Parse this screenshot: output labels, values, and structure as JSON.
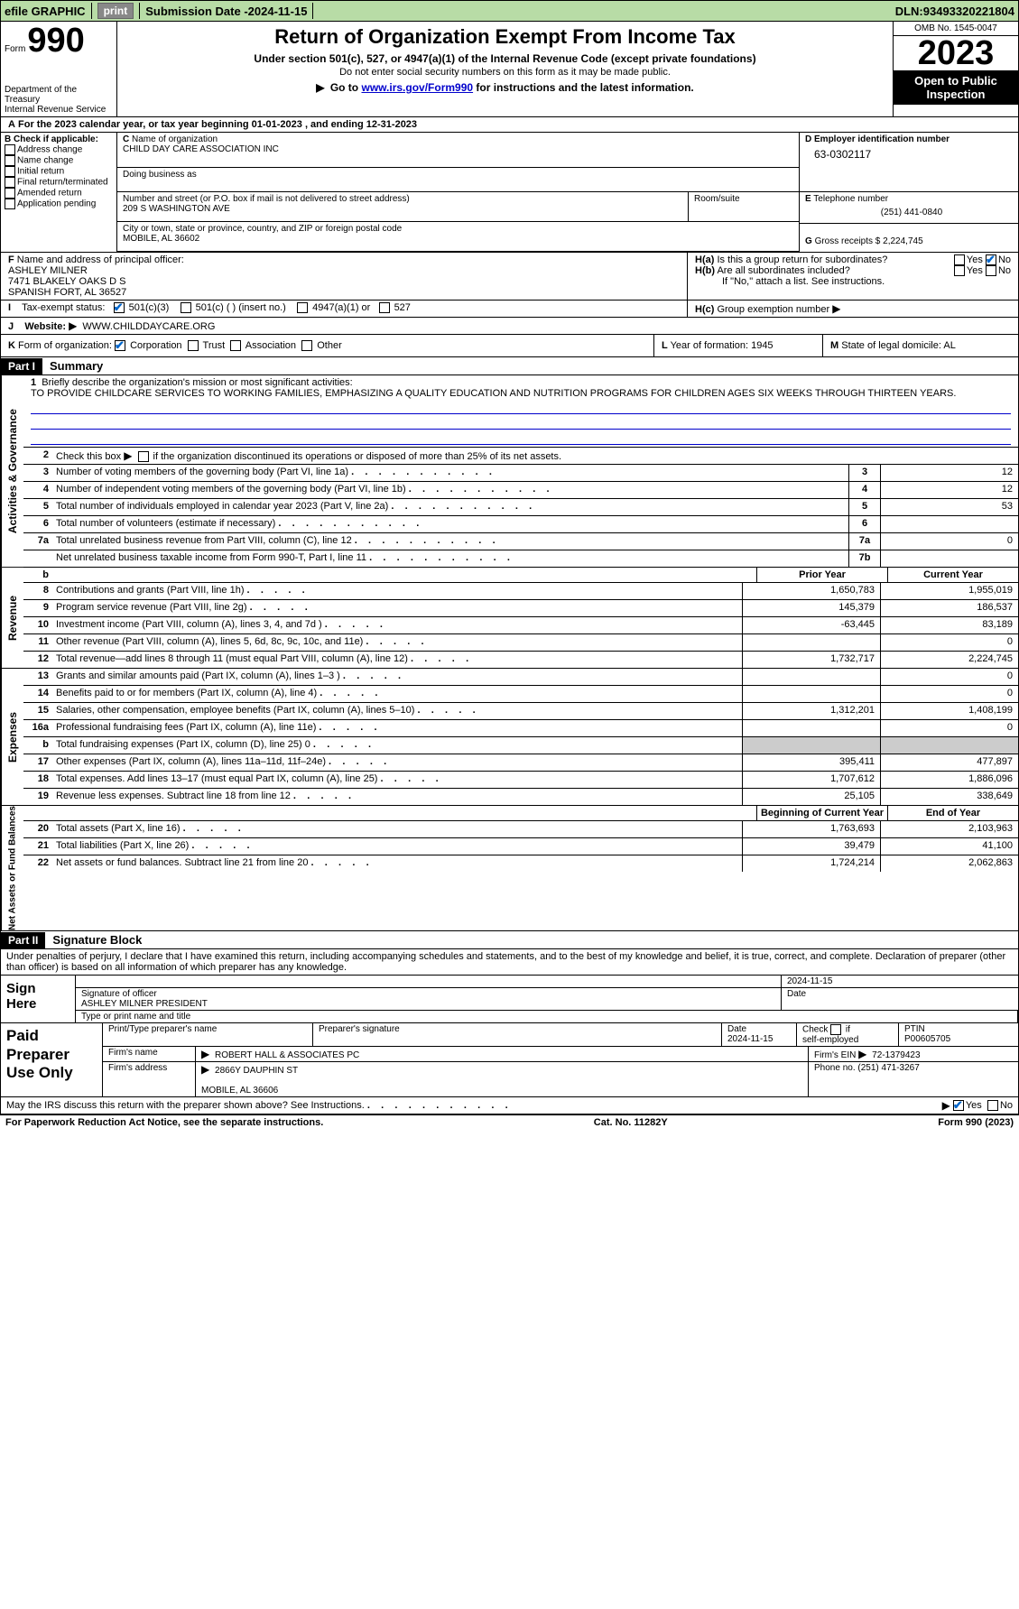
{
  "topbar": {
    "efile": "efile GRAPHIC",
    "print": "print",
    "subdate_lbl": "Submission Date - ",
    "subdate": "2024-11-15",
    "dln_lbl": "DLN: ",
    "dln": "93493320221804"
  },
  "header": {
    "form_word": "Form",
    "form_num": "990",
    "dept": "Department of the Treasury",
    "irs": "Internal Revenue Service",
    "title": "Return of Organization Exempt From Income Tax",
    "sub": "Under section 501(c), 527, or 4947(a)(1) of the Internal Revenue Code (except private foundations)",
    "note": "Do not enter social security numbers on this form as it may be made public.",
    "goto_pre": "Go to ",
    "goto_link": "www.irs.gov/Form990",
    "goto_post": " for instructions and the latest information.",
    "omb": "OMB No. 1545-0047",
    "year": "2023",
    "otp": "Open to Public Inspection"
  },
  "rowA": "For the 2023 calendar year, or tax year beginning 01-01-2023    , and ending 12-31-2023",
  "colB": {
    "hdr": "Check if applicable:",
    "items": [
      "Address change",
      "Name change",
      "Initial return",
      "Final return/terminated",
      "Amended return",
      "Application pending"
    ]
  },
  "colC": {
    "name_lbl": "Name of organization",
    "name": "CHILD DAY CARE ASSOCIATION INC",
    "dba_lbl": "Doing business as",
    "addr_lbl": "Number and street (or P.O. box if mail is not delivered to street address)",
    "addr": "209 S WASHINGTON AVE",
    "room_lbl": "Room/suite",
    "city_lbl": "City or town, state or province, country, and ZIP or foreign postal code",
    "city": "MOBILE, AL  36602"
  },
  "colD": {
    "lbl": "Employer identification number",
    "val": "63-0302117"
  },
  "colE": {
    "lbl": "Telephone number",
    "val": "(251) 441-0840"
  },
  "colG": {
    "lbl": "Gross receipts $",
    "val": "2,224,745"
  },
  "colF": {
    "lbl": "Name and address of principal officer:",
    "name": "ASHLEY MILNER",
    "addr1": "7471 BLAKELY OAKS D S",
    "addr2": "SPANISH FORT, AL  36527"
  },
  "colH": {
    "ha": "Is this a group return for subordinates?",
    "hb": "Are all subordinates included?",
    "hb_note": "If \"No,\" attach a list. See instructions.",
    "hc": "Group exemption number",
    "yes": "Yes",
    "no": "No"
  },
  "rowI": {
    "lbl": "Tax-exempt status:",
    "opt1": "501(c)(3)",
    "opt2": "501(c) (  ) (insert no.)",
    "opt3": "4947(a)(1) or",
    "opt4": "527"
  },
  "rowJ": {
    "lbl": "Website:",
    "val": "WWW.CHILDDAYCARE.ORG"
  },
  "rowK": {
    "lbl": "Form of organization:",
    "opts": [
      "Corporation",
      "Trust",
      "Association",
      "Other"
    ]
  },
  "rowL": {
    "lbl": "Year of formation:",
    "val": "1945"
  },
  "rowM": {
    "lbl": "State of legal domicile:",
    "val": "AL"
  },
  "part1": {
    "label": "Part I",
    "title": "Summary",
    "mission_lbl": "Briefly describe the organization's mission or most significant activities:",
    "mission": "TO PROVIDE CHILDCARE SERVICES TO WORKING FAMILIES, EMPHASIZING A QUALITY EDUCATION AND NUTRITION PROGRAMS FOR CHILDREN AGES SIX WEEKS THROUGH THIRTEEN YEARS.",
    "line2": "Check this box      if the organization discontinued its operations or disposed of more than 25% of its net assets.",
    "gov_label": "Activities & Governance",
    "rev_label": "Revenue",
    "exp_label": "Expenses",
    "net_label": "Net Assets or Fund Balances",
    "prior_lbl": "Prior Year",
    "current_lbl": "Current Year",
    "begin_lbl": "Beginning of Current Year",
    "end_lbl": "End of Year",
    "lines_gov": [
      {
        "n": "3",
        "t": "Number of voting members of the governing body (Part VI, line 1a)",
        "c": "3",
        "v": "12"
      },
      {
        "n": "4",
        "t": "Number of independent voting members of the governing body (Part VI, line 1b)",
        "c": "4",
        "v": "12"
      },
      {
        "n": "5",
        "t": "Total number of individuals employed in calendar year 2023 (Part V, line 2a)",
        "c": "5",
        "v": "53"
      },
      {
        "n": "6",
        "t": "Total number of volunteers (estimate if necessary)",
        "c": "6",
        "v": ""
      },
      {
        "n": "7a",
        "t": "Total unrelated business revenue from Part VIII, column (C), line 12",
        "c": "7a",
        "v": "0"
      },
      {
        "n": "",
        "t": "Net unrelated business taxable income from Form 990-T, Part I, line 11",
        "c": "7b",
        "v": ""
      }
    ],
    "lines_rev": [
      {
        "n": "8",
        "t": "Contributions and grants (Part VIII, line 1h)",
        "p": "1,650,783",
        "c": "1,955,019"
      },
      {
        "n": "9",
        "t": "Program service revenue (Part VIII, line 2g)",
        "p": "145,379",
        "c": "186,537"
      },
      {
        "n": "10",
        "t": "Investment income (Part VIII, column (A), lines 3, 4, and 7d )",
        "p": "-63,445",
        "c": "83,189"
      },
      {
        "n": "11",
        "t": "Other revenue (Part VIII, column (A), lines 5, 6d, 8c, 9c, 10c, and 11e)",
        "p": "",
        "c": "0"
      },
      {
        "n": "12",
        "t": "Total revenue—add lines 8 through 11 (must equal Part VIII, column (A), line 12)",
        "p": "1,732,717",
        "c": "2,224,745"
      }
    ],
    "lines_exp": [
      {
        "n": "13",
        "t": "Grants and similar amounts paid (Part IX, column (A), lines 1–3 )",
        "p": "",
        "c": "0"
      },
      {
        "n": "14",
        "t": "Benefits paid to or for members (Part IX, column (A), line 4)",
        "p": "",
        "c": "0"
      },
      {
        "n": "15",
        "t": "Salaries, other compensation, employee benefits (Part IX, column (A), lines 5–10)",
        "p": "1,312,201",
        "c": "1,408,199"
      },
      {
        "n": "16a",
        "t": "Professional fundraising fees (Part IX, column (A), line 11e)",
        "p": "",
        "c": "0"
      },
      {
        "n": "b",
        "t": "Total fundraising expenses (Part IX, column (D), line 25) 0",
        "p": "shaded",
        "c": "shaded"
      },
      {
        "n": "17",
        "t": "Other expenses (Part IX, column (A), lines 11a–11d, 11f–24e)",
        "p": "395,411",
        "c": "477,897"
      },
      {
        "n": "18",
        "t": "Total expenses. Add lines 13–17 (must equal Part IX, column (A), line 25)",
        "p": "1,707,612",
        "c": "1,886,096"
      },
      {
        "n": "19",
        "t": "Revenue less expenses. Subtract line 18 from line 12",
        "p": "25,105",
        "c": "338,649"
      }
    ],
    "lines_net": [
      {
        "n": "20",
        "t": "Total assets (Part X, line 16)",
        "p": "1,763,693",
        "c": "2,103,963"
      },
      {
        "n": "21",
        "t": "Total liabilities (Part X, line 26)",
        "p": "39,479",
        "c": "41,100"
      },
      {
        "n": "22",
        "t": "Net assets or fund balances. Subtract line 21 from line 20",
        "p": "1,724,214",
        "c": "2,062,863"
      }
    ]
  },
  "part2": {
    "label": "Part II",
    "title": "Signature Block",
    "decl": "Under penalties of perjury, I declare that I have examined this return, including accompanying schedules and statements, and to the best of my knowledge and belief, it is true, correct, and complete. Declaration of preparer (other than officer) is based on all information of which preparer has any knowledge."
  },
  "sign": {
    "here": "Sign Here",
    "sig_lbl": "Signature of officer",
    "date_lbl": "Date",
    "date": "2024-11-15",
    "officer": "ASHLEY MILNER  PRESIDENT",
    "type_lbl": "Type or print name and title"
  },
  "paid": {
    "label": "Paid Preparer Use Only",
    "name_lbl": "Print/Type preparer's name",
    "sig_lbl": "Preparer's signature",
    "date_lbl": "Date",
    "date": "2024-11-15",
    "check_lbl": "Check      if self-employed",
    "ptin_lbl": "PTIN",
    "ptin": "P00605705",
    "firm_name_lbl": "Firm's name",
    "firm_name": "ROBERT HALL & ASSOCIATES PC",
    "firm_ein_lbl": "Firm's EIN",
    "firm_ein": "72-1379423",
    "firm_addr_lbl": "Firm's address",
    "firm_addr1": "2866Y DAUPHIN ST",
    "firm_addr2": "MOBILE, AL  36606",
    "phone_lbl": "Phone no.",
    "phone": "(251) 471-3267"
  },
  "irs_discuss": "May the IRS discuss this return with the preparer shown above? See Instructions.",
  "footer": {
    "left": "For Paperwork Reduction Act Notice, see the separate instructions.",
    "mid": "Cat. No. 11282Y",
    "right": "Form 990 (2023)"
  }
}
